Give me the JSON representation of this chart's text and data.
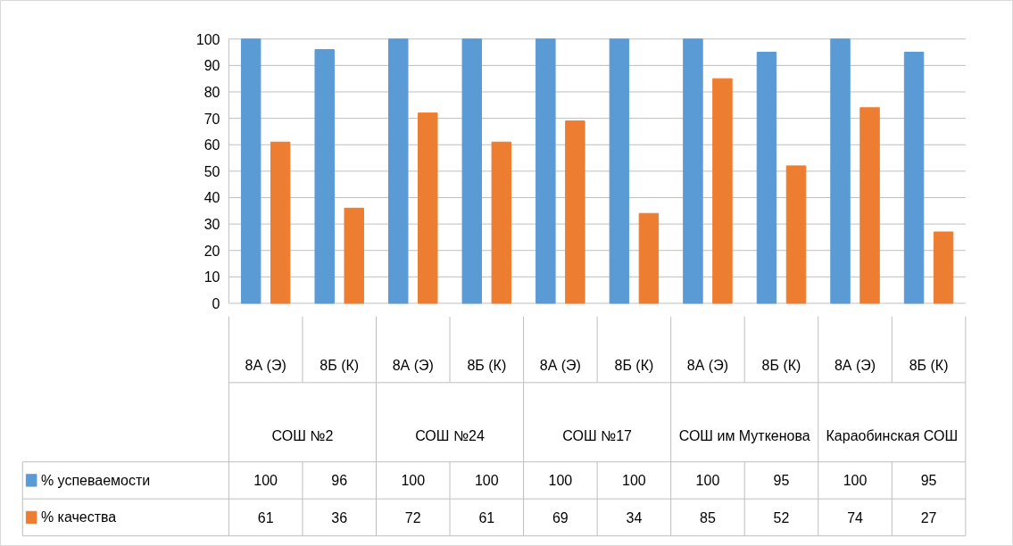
{
  "chart_data": {
    "type": "bar",
    "categories": [
      "8А (Э)",
      "8Б (К)",
      "8А (Э)",
      "8Б (К)",
      "8А (Э)",
      "8Б (К)",
      "8А (Э)",
      "8Б (К)",
      "8А (Э)",
      "8Б (К)"
    ],
    "annotations": [
      "СОШ №2",
      "СОШ №24",
      "СОШ №17",
      "СОШ им Муткенова",
      "Караобинская СОШ"
    ],
    "series": [
      {
        "name": "% успеваемости",
        "color": "#5b9bd5",
        "values": [
          100,
          96,
          100,
          100,
          100,
          100,
          100,
          95,
          100,
          95
        ]
      },
      {
        "name": "% качества",
        "color": "#ed7d31",
        "values": [
          61,
          36,
          72,
          61,
          69,
          34,
          85,
          52,
          74,
          27
        ]
      }
    ],
    "ylim": [
      0,
      100
    ],
    "yticks": [
      0,
      10,
      20,
      30,
      40,
      50,
      60,
      70,
      80,
      90,
      100
    ],
    "grid": "y",
    "data_labels": true,
    "legend": "bottom left"
  }
}
